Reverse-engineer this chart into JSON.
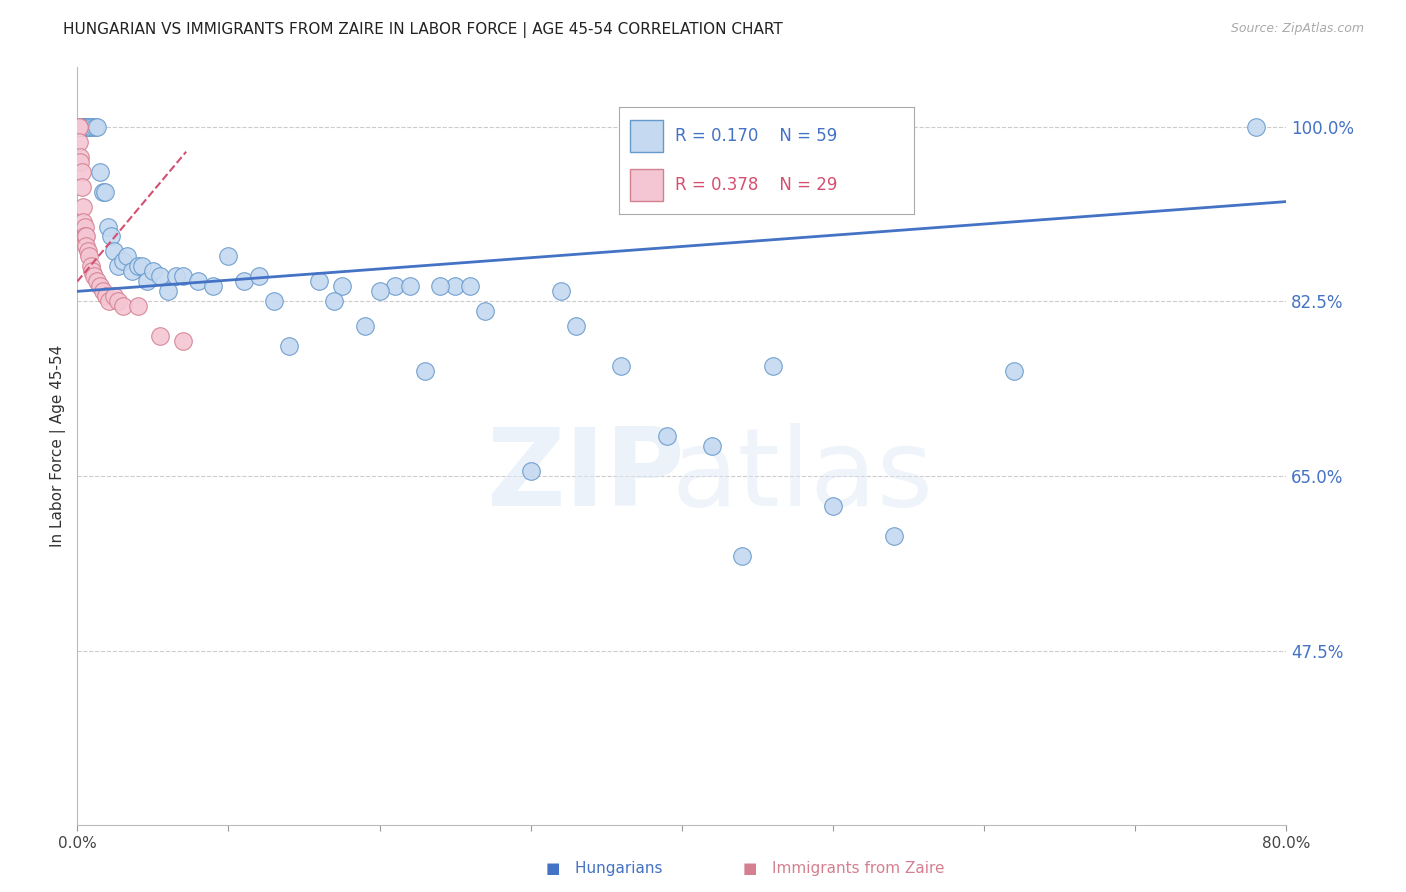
{
  "title": "HUNGARIAN VS IMMIGRANTS FROM ZAIRE IN LABOR FORCE | AGE 45-54 CORRELATION CHART",
  "source": "Source: ZipAtlas.com",
  "ylabel": "In Labor Force | Age 45-54",
  "xlim": [
    0.0,
    0.8
  ],
  "ylim": [
    0.3,
    1.06
  ],
  "yticks": [
    0.475,
    0.65,
    0.825,
    1.0
  ],
  "ytick_labels": [
    "47.5%",
    "65.0%",
    "82.5%",
    "100.0%"
  ],
  "xticks": [
    0.0,
    0.1,
    0.2,
    0.3,
    0.4,
    0.5,
    0.6,
    0.7,
    0.8
  ],
  "xtick_labels": [
    "0.0%",
    "",
    "",
    "",
    "",
    "",
    "",
    "",
    "80.0%"
  ],
  "blue_R": 0.17,
  "blue_N": 59,
  "pink_R": 0.378,
  "pink_N": 29,
  "blue_color": "#c5d9f0",
  "blue_edge": "#6699cc",
  "blue_line_color": "#4472c4",
  "pink_color": "#f4c6d4",
  "pink_edge": "#d48090",
  "pink_line_color": "#d45070",
  "background_color": "#ffffff",
  "grid_color": "#cccccc",
  "blue_line_x": [
    0.0,
    0.8
  ],
  "blue_line_y": [
    0.835,
    0.925
  ],
  "pink_line_x": [
    0.0,
    0.072
  ],
  "pink_line_y": [
    0.845,
    0.975
  ],
  "blue_x": [
    0.003,
    0.003,
    0.004,
    0.005,
    0.006,
    0.007,
    0.008,
    0.01,
    0.012,
    0.013,
    0.015,
    0.017,
    0.018,
    0.02,
    0.022,
    0.024,
    0.027,
    0.03,
    0.033,
    0.036,
    0.04,
    0.043,
    0.046,
    0.05,
    0.055,
    0.06,
    0.065,
    0.07,
    0.08,
    0.09,
    0.1,
    0.11,
    0.12,
    0.13,
    0.14,
    0.16,
    0.175,
    0.19,
    0.21,
    0.23,
    0.25,
    0.27,
    0.3,
    0.33,
    0.36,
    0.39,
    0.42,
    0.46,
    0.5,
    0.54,
    0.17,
    0.2,
    0.22,
    0.24,
    0.26,
    0.32,
    0.44,
    0.62,
    0.78
  ],
  "blue_y": [
    1.0,
    1.0,
    1.0,
    1.0,
    1.0,
    1.0,
    1.0,
    1.0,
    1.0,
    1.0,
    0.955,
    0.935,
    0.935,
    0.9,
    0.89,
    0.875,
    0.86,
    0.865,
    0.87,
    0.855,
    0.86,
    0.86,
    0.845,
    0.855,
    0.85,
    0.835,
    0.85,
    0.85,
    0.845,
    0.84,
    0.87,
    0.845,
    0.85,
    0.825,
    0.78,
    0.845,
    0.84,
    0.8,
    0.84,
    0.755,
    0.84,
    0.815,
    0.655,
    0.8,
    0.76,
    0.69,
    0.68,
    0.76,
    0.62,
    0.59,
    0.825,
    0.835,
    0.84,
    0.84,
    0.84,
    0.835,
    0.57,
    0.755,
    1.0
  ],
  "pink_x": [
    0.001,
    0.001,
    0.001,
    0.002,
    0.002,
    0.003,
    0.003,
    0.004,
    0.004,
    0.005,
    0.005,
    0.006,
    0.006,
    0.007,
    0.008,
    0.009,
    0.01,
    0.011,
    0.013,
    0.015,
    0.017,
    0.019,
    0.021,
    0.024,
    0.027,
    0.03,
    0.04,
    0.055,
    0.07
  ],
  "pink_y": [
    1.0,
    1.0,
    0.985,
    0.97,
    0.965,
    0.955,
    0.94,
    0.92,
    0.905,
    0.9,
    0.89,
    0.89,
    0.88,
    0.875,
    0.87,
    0.86,
    0.855,
    0.85,
    0.845,
    0.84,
    0.835,
    0.83,
    0.825,
    0.83,
    0.825,
    0.82,
    0.82,
    0.79,
    0.785
  ]
}
